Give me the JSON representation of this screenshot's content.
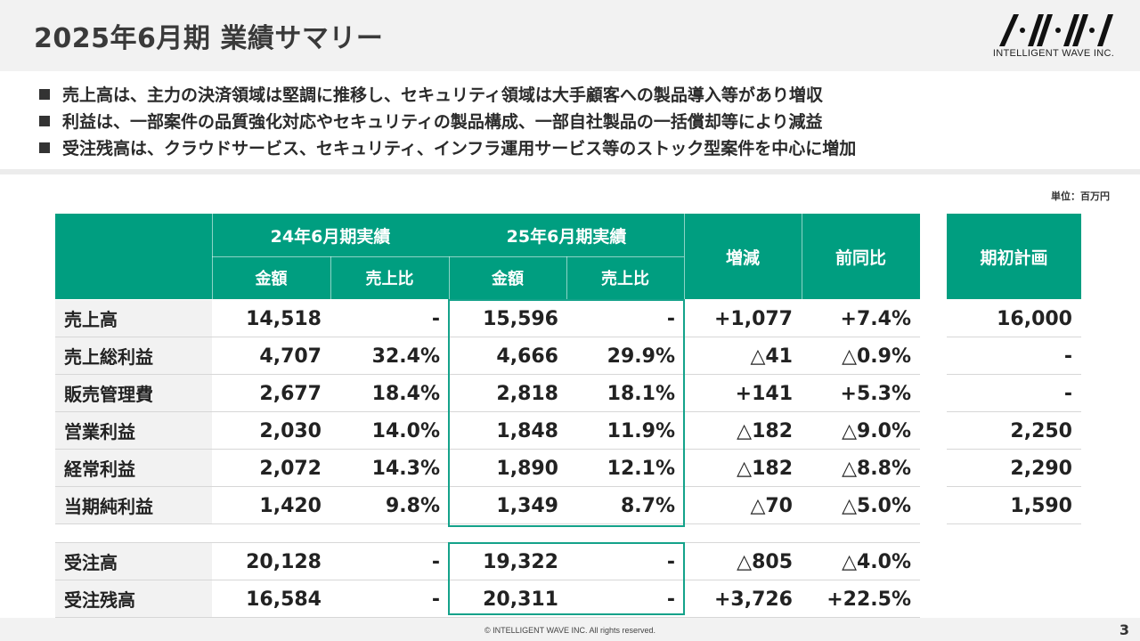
{
  "title": "2025年6月期 業績サマリー",
  "logo_text": "INTELLIGENT WAVE INC.",
  "bullets": [
    "売上高は、主力の決済領域は堅調に推移し、セキュリティ領域は大手顧客への製品導入等があり増収",
    "利益は、一部案件の品質強化対応やセキュリティの製品構成、一部自社製品の一括償却等により減益",
    "受注残高は、クラウドサービス、セキュリティ、インフラ運用サービス等のストック型案件を中心に増加"
  ],
  "unit": "単位：百万円",
  "headers": {
    "fy24": "24年6月期実績",
    "fy25": "25年6月期実績",
    "amount": "金額",
    "ratio": "売上比",
    "change": "増減",
    "yoy": "前同比",
    "plan": "期初計画"
  },
  "rows": [
    {
      "label": "売上高",
      "a24": "14,518",
      "r24": "-",
      "a25": "15,596",
      "r25": "-",
      "chg": "+1,077",
      "yoy": "+7.4%",
      "plan": "16,000"
    },
    {
      "label": "売上総利益",
      "a24": "4,707",
      "r24": "32.4%",
      "a25": "4,666",
      "r25": "29.9%",
      "chg": "△41",
      "yoy": "△0.9%",
      "plan": "-"
    },
    {
      "label": "販売管理費",
      "a24": "2,677",
      "r24": "18.4%",
      "a25": "2,818",
      "r25": "18.1%",
      "chg": "+141",
      "yoy": "+5.3%",
      "plan": "-"
    },
    {
      "label": "営業利益",
      "a24": "2,030",
      "r24": "14.0%",
      "a25": "1,848",
      "r25": "11.9%",
      "chg": "△182",
      "yoy": "△9.0%",
      "plan": "2,250"
    },
    {
      "label": "経常利益",
      "a24": "2,072",
      "r24": "14.3%",
      "a25": "1,890",
      "r25": "12.1%",
      "chg": "△182",
      "yoy": "△8.8%",
      "plan": "2,290"
    },
    {
      "label": "当期純利益",
      "a24": "1,420",
      "r24": "9.8%",
      "a25": "1,349",
      "r25": "8.7%",
      "chg": "△70",
      "yoy": "△5.0%",
      "plan": "1,590"
    }
  ],
  "orders": [
    {
      "label": "受注高",
      "a24": "20,128",
      "r24": "-",
      "a25": "19,322",
      "r25": "-",
      "chg": "△805",
      "yoy": "△4.0%"
    },
    {
      "label": "受注残高",
      "a24": "16,584",
      "r24": "-",
      "a25": "20,311",
      "r25": "-",
      "chg": "+3,726",
      "yoy": "+22.5%"
    }
  ],
  "footer": "© INTELLIGENT WAVE INC. All rights reserved.",
  "page_number": "3",
  "colors": {
    "accent": "#009e80",
    "highlight_border": "#14a28a",
    "label_bg": "#f2f2f2"
  }
}
